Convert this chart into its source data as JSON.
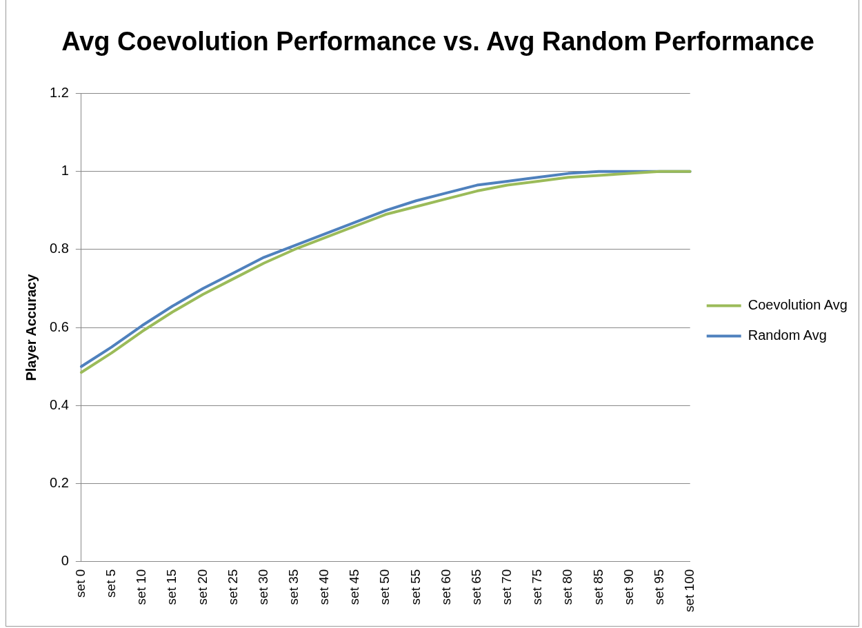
{
  "chart_data": {
    "type": "line",
    "title": "Avg Coevolution Performance vs. Avg Random Performance",
    "ylabel": "Player Accuracy",
    "categories": [
      "set 0",
      "set 5",
      "set 10",
      "set 15",
      "set 20",
      "set 25",
      "set 30",
      "set 35",
      "set 40",
      "set 45",
      "set 50",
      "set 55",
      "set 60",
      "set 65",
      "set 70",
      "set 75",
      "set 80",
      "set 85",
      "set 90",
      "set 95",
      "set 100"
    ],
    "series": [
      {
        "name": "Coevolution Avg",
        "color": "#9bbb59",
        "values": [
          0.485,
          0.535,
          0.59,
          0.64,
          0.685,
          0.725,
          0.765,
          0.8,
          0.83,
          0.86,
          0.89,
          0.91,
          0.93,
          0.95,
          0.965,
          0.975,
          0.985,
          0.99,
          0.995,
          1,
          1
        ]
      },
      {
        "name": "Random Avg",
        "color": "#4f81bd",
        "values": [
          0.5,
          0.55,
          0.605,
          0.655,
          0.7,
          0.74,
          0.78,
          0.81,
          0.84,
          0.87,
          0.9,
          0.925,
          0.945,
          0.965,
          0.975,
          0.985,
          0.995,
          1,
          1,
          1,
          1
        ]
      }
    ],
    "ylim": [
      0,
      1.2
    ],
    "yticks": [
      0,
      0.2,
      0.4,
      0.6,
      0.8,
      1,
      1.2
    ],
    "grid": "y",
    "legend": "right",
    "marker": "none",
    "line_style": "solid"
  }
}
